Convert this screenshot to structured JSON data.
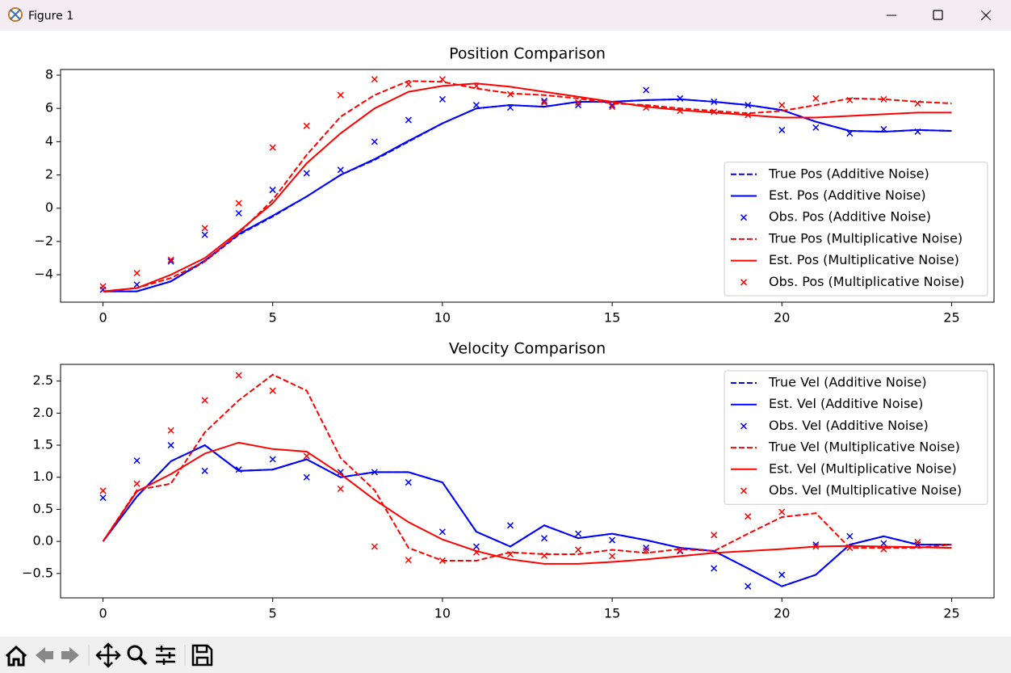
{
  "window": {
    "title": "Figure 1"
  },
  "chart_data": [
    {
      "type": "line",
      "title": "Position Comparison",
      "x": [
        0,
        1,
        2,
        3,
        4,
        5,
        6,
        7,
        8,
        9,
        10,
        11,
        12,
        13,
        14,
        15,
        16,
        17,
        18,
        19,
        20,
        21,
        22,
        23,
        24,
        25
      ],
      "xlim": [
        -1.25,
        26.25
      ],
      "xticks": [
        0,
        5,
        10,
        15,
        20,
        25
      ],
      "ylim": [
        -5.65,
        8.34
      ],
      "yticks": [
        {
          "value": -4,
          "label": "−4"
        },
        {
          "value": -2,
          "label": "−2"
        },
        0,
        2,
        4,
        6,
        8
      ],
      "legend": "lower right",
      "series": [
        {
          "name": "True Pos (Additive Noise)",
          "color": "#0000ff",
          "style": "dashed",
          "values": [
            -5,
            -5,
            -4.4,
            -3.2,
            -1.6,
            -0.5,
            0.7,
            2.0,
            2.9,
            4.0,
            5.1,
            6.0,
            6.2,
            6.1,
            6.4,
            6.4,
            6.5,
            6.55,
            6.4,
            6.2,
            5.9,
            5.2,
            4.65,
            4.6,
            4.7,
            4.65
          ]
        },
        {
          "name": "Est. Pos (Additive Noise)",
          "color": "#0000ff",
          "style": "solid",
          "values": [
            -5,
            -5,
            -4.4,
            -3.15,
            -1.55,
            -0.45,
            0.7,
            2.0,
            2.95,
            4.05,
            5.1,
            6.0,
            6.2,
            6.1,
            6.4,
            6.4,
            6.5,
            6.55,
            6.4,
            6.2,
            5.9,
            5.2,
            4.65,
            4.6,
            4.7,
            4.65
          ]
        },
        {
          "name": "Obs. Pos (Additive Noise)",
          "color": "#0000ff",
          "style": "marker",
          "x": [
            0,
            1,
            2,
            3,
            4,
            5,
            6,
            7,
            8,
            9,
            10,
            11,
            12,
            13,
            14,
            15,
            16,
            17,
            18,
            19,
            20,
            21,
            22,
            23,
            24
          ],
          "values": [
            -4.9,
            -4.6,
            -3.2,
            -1.6,
            -0.3,
            1.1,
            2.1,
            2.3,
            4.0,
            5.3,
            6.55,
            6.2,
            6.05,
            6.45,
            6.2,
            6.2,
            7.1,
            6.6,
            6.4,
            6.2,
            4.7,
            4.85,
            4.5,
            4.75,
            4.6
          ]
        },
        {
          "name": "True Pos (Multiplicative Noise)",
          "color": "#ff0000",
          "style": "dashed",
          "values": [
            -5,
            -4.8,
            -4.2,
            -3.2,
            -1.5,
            0.5,
            3.2,
            5.5,
            6.8,
            7.65,
            7.6,
            7.2,
            6.9,
            6.8,
            6.6,
            6.3,
            6.2,
            6.0,
            5.85,
            5.7,
            5.85,
            6.2,
            6.6,
            6.55,
            6.4,
            6.3
          ]
        },
        {
          "name": "Est. Pos (Multiplicative Noise)",
          "color": "#ff0000",
          "style": "solid",
          "values": [
            -5,
            -4.8,
            -4.0,
            -3.0,
            -1.4,
            0.3,
            2.7,
            4.5,
            6.0,
            7.0,
            7.35,
            7.5,
            7.3,
            7.0,
            6.7,
            6.4,
            6.1,
            5.9,
            5.75,
            5.6,
            5.45,
            5.45,
            5.55,
            5.65,
            5.75,
            5.75
          ]
        },
        {
          "name": "Obs. Pos (Multiplicative Noise)",
          "color": "#ff0000",
          "style": "marker",
          "x": [
            0,
            1,
            2,
            3,
            4,
            5,
            6,
            7,
            8,
            9,
            10,
            11,
            12,
            13,
            14,
            15,
            16,
            17,
            18,
            19,
            20,
            21,
            22,
            23,
            24
          ],
          "values": [
            -4.7,
            -3.9,
            -3.1,
            -1.2,
            0.3,
            3.65,
            4.95,
            6.8,
            7.75,
            7.45,
            7.75,
            7.35,
            6.85,
            6.35,
            6.35,
            6.1,
            6.05,
            5.85,
            5.8,
            5.6,
            6.2,
            6.6,
            6.5,
            6.55,
            6.3
          ]
        }
      ]
    },
    {
      "type": "line",
      "title": "Velocity Comparison",
      "x": [
        0,
        1,
        2,
        3,
        4,
        5,
        6,
        7,
        8,
        9,
        10,
        11,
        12,
        13,
        14,
        15,
        16,
        17,
        18,
        19,
        20,
        21,
        22,
        23,
        24,
        25
      ],
      "xlim": [
        -1.25,
        26.25
      ],
      "xticks": [
        0,
        5,
        10,
        15,
        20,
        25
      ],
      "ylim": [
        -0.88,
        2.76
      ],
      "yticks": [
        {
          "value": -0.5,
          "label": "−0.5"
        },
        {
          "value": 0,
          "label": "0.0"
        },
        0.5,
        {
          "value": 1,
          "label": "1.0"
        },
        1.5,
        {
          "value": 2,
          "label": "2.0"
        },
        2.5
      ],
      "legend": "upper right",
      "series": [
        {
          "name": "True Vel (Additive Noise)",
          "color": "#0000ff",
          "style": "dashed",
          "values": [
            0,
            0.7,
            1.25,
            1.5,
            1.1,
            1.12,
            1.28,
            1.0,
            1.08,
            1.08,
            0.92,
            0.15,
            -0.08,
            0.25,
            0.05,
            0.12,
            0.02,
            -0.1,
            -0.15,
            -0.42,
            -0.7,
            -0.52,
            -0.05,
            0.08,
            -0.05,
            -0.05
          ]
        },
        {
          "name": "Est. Vel (Additive Noise)",
          "color": "#0000ff",
          "style": "solid",
          "values": [
            0,
            0.7,
            1.25,
            1.5,
            1.1,
            1.12,
            1.28,
            1.0,
            1.08,
            1.08,
            0.92,
            0.15,
            -0.08,
            0.25,
            0.05,
            0.12,
            0.02,
            -0.1,
            -0.15,
            -0.42,
            -0.7,
            -0.52,
            -0.05,
            0.08,
            -0.05,
            -0.05
          ]
        },
        {
          "name": "Obs. Vel (Additive Noise)",
          "color": "#0000ff",
          "style": "marker",
          "x": [
            0,
            1,
            2,
            3,
            4,
            5,
            6,
            7,
            8,
            9,
            10,
            11,
            12,
            13,
            14,
            15,
            16,
            17,
            18,
            19,
            20,
            21,
            22,
            23,
            24
          ],
          "values": [
            0.68,
            1.26,
            1.5,
            1.1,
            1.12,
            1.28,
            1.0,
            1.08,
            1.08,
            0.92,
            0.15,
            -0.08,
            0.25,
            0.05,
            0.12,
            0.02,
            -0.1,
            -0.15,
            -0.42,
            -0.7,
            -0.52,
            -0.05,
            0.08,
            -0.03,
            -0.05
          ]
        },
        {
          "name": "True Vel (Multiplicative Noise)",
          "color": "#ff0000",
          "style": "dashed",
          "values": [
            0,
            0.8,
            0.9,
            1.7,
            2.2,
            2.6,
            2.35,
            1.3,
            0.8,
            -0.1,
            -0.3,
            -0.3,
            -0.17,
            -0.2,
            -0.2,
            -0.13,
            -0.18,
            -0.12,
            -0.15,
            0.12,
            0.38,
            0.44,
            -0.1,
            -0.1,
            -0.1,
            -0.05
          ]
        },
        {
          "name": "Est. Vel (Multiplicative Noise)",
          "color": "#ff0000",
          "style": "solid",
          "values": [
            0,
            0.78,
            1.05,
            1.37,
            1.54,
            1.44,
            1.4,
            1.05,
            0.65,
            0.3,
            0.03,
            -0.15,
            -0.28,
            -0.35,
            -0.35,
            -0.32,
            -0.28,
            -0.23,
            -0.18,
            -0.15,
            -0.12,
            -0.08,
            -0.07,
            -0.08,
            -0.09,
            -0.1
          ]
        },
        {
          "name": "Obs. Vel (Multiplicative Noise)",
          "color": "#ff0000",
          "style": "marker",
          "x": [
            0,
            1,
            2,
            3,
            4,
            5,
            6,
            7,
            8,
            9,
            10,
            11,
            12,
            13,
            14,
            15,
            16,
            17,
            18,
            19,
            20,
            21,
            22,
            23,
            24
          ],
          "values": [
            0.79,
            0.9,
            1.73,
            2.2,
            2.59,
            2.35,
            1.33,
            0.82,
            -0.08,
            -0.29,
            -0.3,
            -0.17,
            -0.2,
            -0.22,
            -0.13,
            -0.23,
            -0.14,
            -0.14,
            0.1,
            0.39,
            0.46,
            -0.08,
            -0.1,
            -0.12,
            -0.01
          ]
        }
      ]
    }
  ]
}
